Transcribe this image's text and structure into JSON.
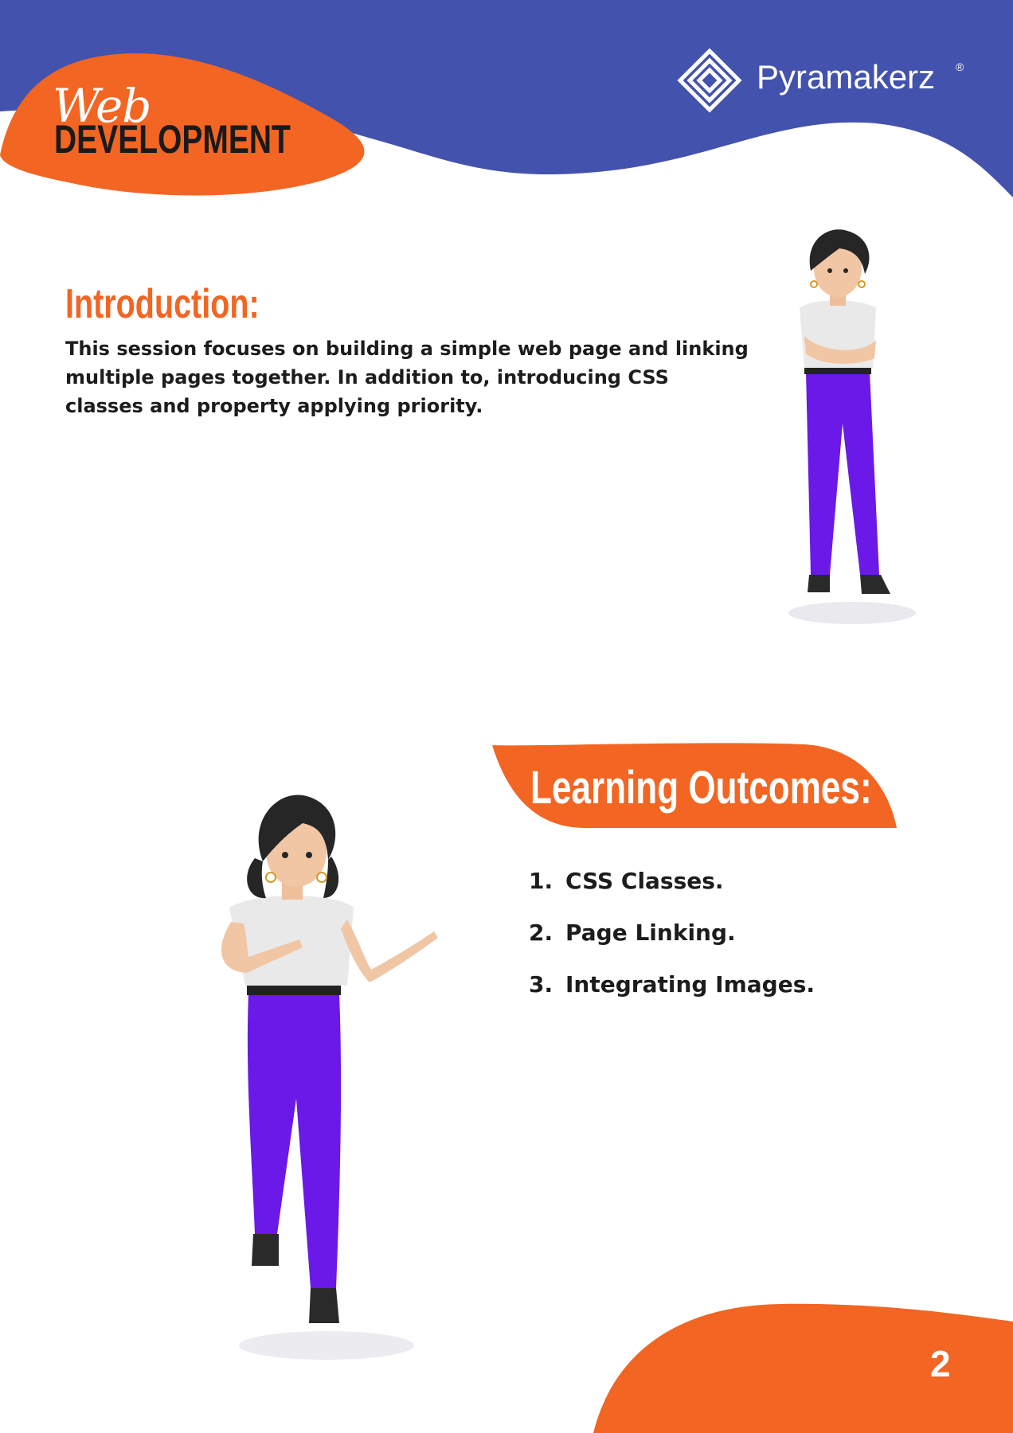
{
  "header": {
    "brand_script": "Web",
    "brand_title": "DEVELOPMENT",
    "logo_name": "Pyramakerz",
    "logo_mark": "®"
  },
  "introduction": {
    "heading": "Introduction:",
    "body": "This session focuses on building a simple web page and linking multiple pages together. In addition to, introducing CSS classes and property applying priority."
  },
  "learning_outcomes": {
    "heading": "Learning Outcomes:",
    "items": [
      {
        "num": "1.",
        "text": "CSS Classes."
      },
      {
        "num": "2.",
        "text": "Page Linking."
      },
      {
        "num": "3.",
        "text": "Integrating Images."
      }
    ]
  },
  "footer": {
    "page_number": "2"
  },
  "colors": {
    "blue": "#4352ad",
    "orange": "#f26522",
    "pants": "#6a19e8",
    "hair": "#262626"
  },
  "icons": [
    "pyramid-maze-logo-icon",
    "standing-woman-illustration",
    "pointing-woman-illustration"
  ]
}
